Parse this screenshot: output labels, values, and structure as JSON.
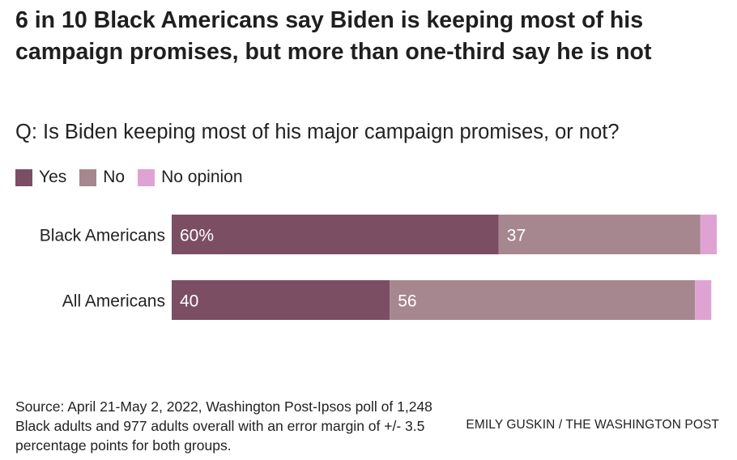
{
  "chart_data": {
    "type": "bar",
    "orientation": "horizontal",
    "stacked": true,
    "title": "6 in 10 Black Americans say Biden is keeping most of his campaign promises, but more than one-third say he is not",
    "subtitle": "Q: Is Biden keeping most of his major campaign promises, or not?",
    "categories": [
      "Black Americans",
      "All Americans"
    ],
    "series": [
      {
        "name": "Yes",
        "values": [
          60,
          40
        ],
        "labels": [
          "60%",
          "40"
        ],
        "color": "#7b4e64"
      },
      {
        "name": "No",
        "values": [
          37,
          56
        ],
        "labels": [
          "37",
          "56"
        ],
        "color": "#a7878f"
      },
      {
        "name": "No opinion",
        "values": [
          3,
          3
        ],
        "labels": [
          "",
          ""
        ],
        "color": "#dfa3d3"
      }
    ],
    "xlim": [
      0,
      100
    ],
    "grid": false,
    "legend_position": "top-left"
  },
  "source": "Source: April 21-May 2, 2022, Washington Post-Ipsos poll of 1,248 Black adults and 977 adults overall with an error margin of +/- 3.5 percentage points for both groups.",
  "credit": "EMILY GUSKIN / THE WASHINGTON POST"
}
